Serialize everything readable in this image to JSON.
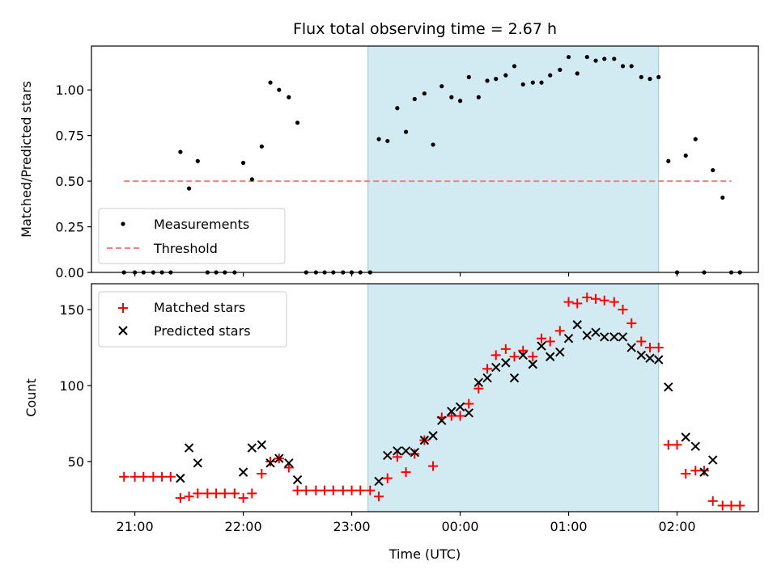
{
  "chart_data": [
    {
      "type": "scatter",
      "title": "Flux total observing time = 2.67 h",
      "xlabel": "",
      "ylabel": "Matched/Predicted stars",
      "ylim": [
        0,
        1.24
      ],
      "yticks": [
        0.0,
        0.25,
        0.5,
        0.75,
        1.0
      ],
      "ytick_labels": [
        "0.00",
        "0.25",
        "0.50",
        "0.75",
        "1.00"
      ],
      "x_unit": "hours since 00:00 UTC (previous day negative)",
      "xlim": [
        -3.4,
        2.75
      ],
      "shaded_interval": [
        -0.85,
        1.83
      ],
      "shade_color": "#add8e6",
      "legend_position": "lower-left",
      "threshold": {
        "name": "Threshold",
        "value": 0.5,
        "x_range": [
          -3.1,
          2.5
        ],
        "color": "#f08080"
      },
      "series": [
        {
          "name": "Measurements",
          "marker": "dot",
          "color": "#000000",
          "points": [
            [
              -3.1,
              0.0
            ],
            [
              -3.0,
              0.0
            ],
            [
              -2.92,
              0.0
            ],
            [
              -2.83,
              0.0
            ],
            [
              -2.75,
              0.0
            ],
            [
              -2.67,
              0.0
            ],
            [
              -2.58,
              0.66
            ],
            [
              -2.5,
              0.46
            ],
            [
              -2.42,
              0.61
            ],
            [
              -2.33,
              0.0
            ],
            [
              -2.25,
              0.0
            ],
            [
              -2.17,
              0.0
            ],
            [
              -2.08,
              0.0
            ],
            [
              -2.0,
              0.6
            ],
            [
              -1.92,
              0.51
            ],
            [
              -1.83,
              0.69
            ],
            [
              -1.75,
              1.04
            ],
            [
              -1.67,
              1.0
            ],
            [
              -1.58,
              0.96
            ],
            [
              -1.5,
              0.82
            ],
            [
              -1.42,
              0.0
            ],
            [
              -1.33,
              0.0
            ],
            [
              -1.25,
              0.0
            ],
            [
              -1.17,
              0.0
            ],
            [
              -1.08,
              0.0
            ],
            [
              -1.0,
              0.0
            ],
            [
              -0.92,
              0.0
            ],
            [
              -0.83,
              0.0
            ],
            [
              -0.75,
              0.73
            ],
            [
              -0.67,
              0.72
            ],
            [
              -0.58,
              0.9
            ],
            [
              -0.5,
              0.77
            ],
            [
              -0.42,
              0.95
            ],
            [
              -0.33,
              0.98
            ],
            [
              -0.25,
              0.7
            ],
            [
              -0.17,
              1.02
            ],
            [
              -0.08,
              0.96
            ],
            [
              0.0,
              0.94
            ],
            [
              0.08,
              1.07
            ],
            [
              0.17,
              0.96
            ],
            [
              0.25,
              1.05
            ],
            [
              0.33,
              1.06
            ],
            [
              0.42,
              1.08
            ],
            [
              0.5,
              1.13
            ],
            [
              0.58,
              1.03
            ],
            [
              0.67,
              1.04
            ],
            [
              0.75,
              1.04
            ],
            [
              0.83,
              1.08
            ],
            [
              0.92,
              1.11
            ],
            [
              1.0,
              1.18
            ],
            [
              1.08,
              1.09
            ],
            [
              1.17,
              1.18
            ],
            [
              1.25,
              1.16
            ],
            [
              1.33,
              1.17
            ],
            [
              1.42,
              1.17
            ],
            [
              1.5,
              1.13
            ],
            [
              1.58,
              1.13
            ],
            [
              1.67,
              1.07
            ],
            [
              1.75,
              1.06
            ],
            [
              1.83,
              1.07
            ],
            [
              1.92,
              0.61
            ],
            [
              2.0,
              0.0
            ],
            [
              2.08,
              0.64
            ],
            [
              2.17,
              0.73
            ],
            [
              2.25,
              0.0
            ],
            [
              2.33,
              0.56
            ],
            [
              2.42,
              0.41
            ],
            [
              2.5,
              0.0
            ],
            [
              2.58,
              0.0
            ]
          ]
        }
      ],
      "legend": [
        {
          "label": "Measurements",
          "marker": "dot",
          "color": "#000000"
        },
        {
          "label": "Threshold",
          "marker": "dashed-line",
          "color": "#f08080"
        }
      ]
    },
    {
      "type": "scatter",
      "title": "",
      "xlabel": "Time (UTC)",
      "ylabel": "Count",
      "ylim": [
        17,
        167
      ],
      "yticks": [
        50,
        100,
        150
      ],
      "ytick_labels": [
        "50",
        "100",
        "150"
      ],
      "x_unit": "hours since 00:00 UTC (previous day negative)",
      "xlim": [
        -3.4,
        2.75
      ],
      "xticks": [
        -3,
        -2,
        -1,
        0,
        1,
        2
      ],
      "xtick_labels": [
        "21:00",
        "22:00",
        "23:00",
        "00:00",
        "01:00",
        "02:00"
      ],
      "shaded_interval": [
        -0.85,
        1.83
      ],
      "shade_color": "#add8e6",
      "legend_position": "top-left",
      "series": [
        {
          "name": "Matched stars",
          "marker": "plus",
          "color": "#ff0000",
          "points": [
            [
              -3.1,
              40
            ],
            [
              -3.0,
              40
            ],
            [
              -2.92,
              40
            ],
            [
              -2.83,
              40
            ],
            [
              -2.75,
              40
            ],
            [
              -2.67,
              40
            ],
            [
              -2.58,
              26
            ],
            [
              -2.5,
              27
            ],
            [
              -2.42,
              29
            ],
            [
              -2.33,
              29
            ],
            [
              -2.25,
              29
            ],
            [
              -2.17,
              29
            ],
            [
              -2.08,
              29
            ],
            [
              -2.0,
              26
            ],
            [
              -1.92,
              29
            ],
            [
              -1.83,
              42
            ],
            [
              -1.75,
              50
            ],
            [
              -1.67,
              52
            ],
            [
              -1.58,
              46
            ],
            [
              -1.5,
              31
            ],
            [
              -1.42,
              31
            ],
            [
              -1.33,
              31
            ],
            [
              -1.25,
              31
            ],
            [
              -1.17,
              31
            ],
            [
              -1.08,
              31
            ],
            [
              -1.0,
              31
            ],
            [
              -0.92,
              31
            ],
            [
              -0.83,
              31
            ],
            [
              -0.75,
              27
            ],
            [
              -0.67,
              39
            ],
            [
              -0.58,
              53
            ],
            [
              -0.5,
              43
            ],
            [
              -0.42,
              55
            ],
            [
              -0.33,
              64
            ],
            [
              -0.25,
              47
            ],
            [
              -0.17,
              79
            ],
            [
              -0.08,
              80
            ],
            [
              0.0,
              80
            ],
            [
              0.08,
              88
            ],
            [
              0.17,
              98
            ],
            [
              0.25,
              111
            ],
            [
              0.33,
              120
            ],
            [
              0.42,
              124
            ],
            [
              0.5,
              119
            ],
            [
              0.58,
              123
            ],
            [
              0.67,
              119
            ],
            [
              0.75,
              131
            ],
            [
              0.83,
              129
            ],
            [
              0.92,
              136
            ],
            [
              1.0,
              155
            ],
            [
              1.08,
              154
            ],
            [
              1.17,
              158
            ],
            [
              1.25,
              157
            ],
            [
              1.33,
              156
            ],
            [
              1.42,
              155
            ],
            [
              1.5,
              150
            ],
            [
              1.58,
              141
            ],
            [
              1.67,
              129
            ],
            [
              1.75,
              125
            ],
            [
              1.83,
              125
            ],
            [
              1.92,
              61
            ],
            [
              2.0,
              61
            ],
            [
              2.08,
              42
            ],
            [
              2.17,
              44
            ],
            [
              2.25,
              44
            ],
            [
              2.33,
              24
            ],
            [
              2.42,
              21
            ],
            [
              2.5,
              21
            ],
            [
              2.58,
              21
            ]
          ]
        },
        {
          "name": "Predicted stars",
          "marker": "x",
          "color": "#000000",
          "points": [
            [
              -2.58,
              39
            ],
            [
              -2.5,
              59
            ],
            [
              -2.42,
              49
            ],
            [
              -2.0,
              43
            ],
            [
              -1.92,
              59
            ],
            [
              -1.83,
              61
            ],
            [
              -1.75,
              49
            ],
            [
              -1.67,
              52
            ],
            [
              -1.58,
              49
            ],
            [
              -1.5,
              38
            ],
            [
              -0.75,
              37
            ],
            [
              -0.67,
              54
            ],
            [
              -0.58,
              57
            ],
            [
              -0.5,
              57
            ],
            [
              -0.42,
              56
            ],
            [
              -0.33,
              64
            ],
            [
              -0.25,
              67
            ],
            [
              -0.17,
              77
            ],
            [
              -0.08,
              83
            ],
            [
              0.0,
              86
            ],
            [
              0.08,
              82
            ],
            [
              0.17,
              102
            ],
            [
              0.25,
              105
            ],
            [
              0.33,
              112
            ],
            [
              0.42,
              115
            ],
            [
              0.5,
              105
            ],
            [
              0.58,
              120
            ],
            [
              0.67,
              114
            ],
            [
              0.75,
              126
            ],
            [
              0.83,
              119
            ],
            [
              0.92,
              122
            ],
            [
              1.0,
              131
            ],
            [
              1.08,
              140
            ],
            [
              1.17,
              133
            ],
            [
              1.25,
              135
            ],
            [
              1.33,
              132
            ],
            [
              1.42,
              132
            ],
            [
              1.5,
              132
            ],
            [
              1.58,
              125
            ],
            [
              1.67,
              120
            ],
            [
              1.75,
              118
            ],
            [
              1.83,
              117
            ],
            [
              1.92,
              99
            ],
            [
              2.08,
              66
            ],
            [
              2.17,
              60
            ],
            [
              2.25,
              43
            ],
            [
              2.33,
              51
            ]
          ]
        }
      ],
      "legend": [
        {
          "label": "Matched stars",
          "marker": "plus",
          "color": "#ff0000"
        },
        {
          "label": "Predicted stars",
          "marker": "x",
          "color": "#000000"
        }
      ]
    }
  ]
}
